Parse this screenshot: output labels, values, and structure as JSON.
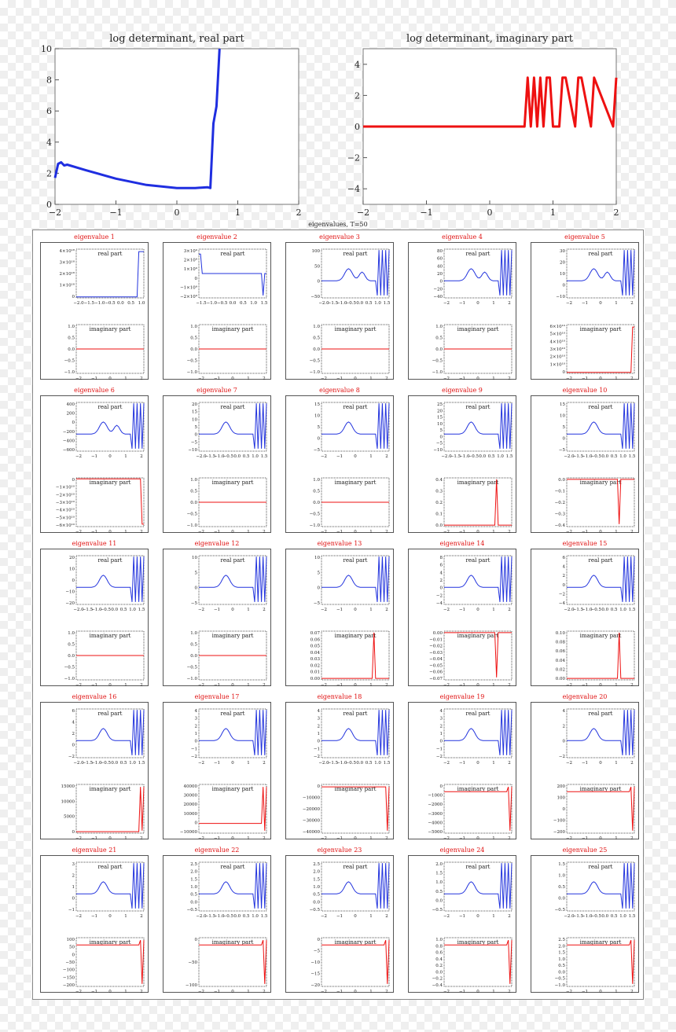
{
  "top_charts": [
    {
      "title": "log determinant, real part",
      "color": "#1f2ee0",
      "x_ticks": [
        "−2",
        "−1",
        "0",
        "1",
        "2"
      ],
      "y_ticks": [
        "0",
        "2",
        "4",
        "6",
        "8",
        "10"
      ]
    },
    {
      "title": "log determinant, imaginary part",
      "color": "#ee1111",
      "x_ticks": [
        "−2",
        "−1",
        "0",
        "1",
        "2"
      ],
      "y_ticks": [
        "−4",
        "−2",
        "0",
        "2",
        "4"
      ]
    }
  ],
  "grid_title": "eigenvalues, T=50",
  "sub_labels": {
    "real": "real part",
    "imag": "imaginary part"
  },
  "colors": {
    "real": "#2233dd",
    "imag": "#ee1111",
    "title": "#e01010"
  },
  "eigenvalues": [
    {
      "title": "eigenvalue 1",
      "real_y": [
        "0",
        "1×10¹⁸",
        "2×10¹⁸",
        "3×10¹⁸",
        "4×10¹⁸"
      ],
      "real_x": [
        "−2.0",
        "−1.5",
        "−1.0",
        "−0.5",
        "0.0",
        "0.5",
        "1.0"
      ],
      "imag_y": [
        "−1.0",
        "−0.5",
        "0.0",
        "0.5",
        "1.0"
      ],
      "imag_x": [
        "−2",
        "−1",
        "0",
        "1",
        "2"
      ]
    },
    {
      "title": "eigenvalue 2",
      "real_y": [
        "−2×10⁹",
        "−1×10⁹",
        "0",
        "1×10⁹",
        "2×10⁹",
        "3×10⁹"
      ],
      "real_x": [
        "−1.5",
        "−1.0",
        "−0.5",
        "0.0",
        "0.5",
        "1.0",
        "1.5"
      ],
      "imag_y": [
        "−1.0",
        "−0.5",
        "0.0",
        "0.5",
        "1.0"
      ],
      "imag_x": [
        "−2",
        "−1",
        "0",
        "1",
        "2"
      ]
    },
    {
      "title": "eigenvalue 3",
      "real_y": [
        "−50",
        "0",
        "50",
        "100"
      ],
      "real_x": [
        "−2.0",
        "−1.5",
        "−1.0",
        "−0.5",
        "0.0",
        "0.5",
        "1.0",
        "1.5"
      ],
      "imag_y": [
        "−1.0",
        "−0.5",
        "0.0",
        "0.5",
        "1.0"
      ],
      "imag_x": [
        "−2",
        "−1",
        "0",
        "1",
        "2"
      ]
    },
    {
      "title": "eigenvalue 4",
      "real_y": [
        "−40",
        "−20",
        "0",
        "20",
        "40",
        "60",
        "80"
      ],
      "real_x": [
        "−2",
        "−1",
        "0",
        "1",
        "2"
      ],
      "imag_y": [
        "−1.0",
        "−0.5",
        "0.0",
        "0.5",
        "1.0"
      ],
      "imag_x": [
        "−2",
        "−1",
        "0",
        "1",
        "2"
      ]
    },
    {
      "title": "eigenvalue 5",
      "real_y": [
        "−10",
        "0",
        "10",
        "20",
        "30"
      ],
      "real_x": [
        "−2",
        "−1",
        "0",
        "1",
        "2"
      ],
      "imag_y": [
        "0",
        "1×10¹⁰",
        "2×10¹⁰",
        "3×10¹⁰",
        "4×10¹⁰",
        "5×10¹⁰",
        "6×10¹⁰"
      ],
      "imag_x": [
        "−2",
        "−1",
        "0",
        "1",
        "2"
      ]
    },
    {
      "title": "eigenvalue 6",
      "real_y": [
        "−600",
        "−400",
        "−200",
        "0",
        "200",
        "400"
      ],
      "real_x": [
        "−2",
        "−1",
        "0",
        "1",
        "2"
      ],
      "imag_y": [
        "−6×10¹⁰",
        "−5×10¹⁰",
        "−4×10¹⁰",
        "−3×10¹⁰",
        "−2×10¹⁰",
        "−1×10¹⁰",
        "0"
      ],
      "imag_x": [
        "−2",
        "−1",
        "0",
        "1",
        "2"
      ]
    },
    {
      "title": "eigenvalue 7",
      "real_y": [
        "−10",
        "−5",
        "0",
        "5",
        "10",
        "15",
        "20"
      ],
      "real_x": [
        "−2.0",
        "−1.5",
        "−1.0",
        "−0.5",
        "0.0",
        "0.5",
        "1.0",
        "1.5"
      ],
      "imag_y": [
        "−1.0",
        "−0.5",
        "0.0",
        "0.5",
        "1.0"
      ],
      "imag_x": [
        "−2",
        "−1",
        "0",
        "1",
        "2"
      ]
    },
    {
      "title": "eigenvalue 8",
      "real_y": [
        "−5",
        "0",
        "5",
        "10",
        "15"
      ],
      "real_x": [
        "−2",
        "−1",
        "0",
        "1",
        "2"
      ],
      "imag_y": [
        "−1.0",
        "−0.5",
        "0.0",
        "0.5",
        "1.0"
      ],
      "imag_x": [
        "−2",
        "−1",
        "0",
        "1",
        "2"
      ]
    },
    {
      "title": "eigenvalue 9",
      "real_y": [
        "−10",
        "−5",
        "0",
        "5",
        "10",
        "15",
        "20",
        "25"
      ],
      "real_x": [
        "−2.0",
        "−1.5",
        "−1.0",
        "−0.5",
        "0.0",
        "0.5",
        "1.0",
        "1.5"
      ],
      "imag_y": [
        "0.0",
        "0.1",
        "0.2",
        "0.3",
        "0.4"
      ],
      "imag_x": [
        "−2",
        "−1",
        "0",
        "1",
        "2"
      ]
    },
    {
      "title": "eigenvalue 10",
      "real_y": [
        "−5",
        "0",
        "5",
        "10",
        "15"
      ],
      "real_x": [
        "−2.0",
        "−1.5",
        "−1.0",
        "−0.5",
        "0.0",
        "0.5",
        "1.0",
        "1.5"
      ],
      "imag_y": [
        "−0.4",
        "−0.3",
        "−0.2",
        "−0.1",
        "0.0"
      ],
      "imag_x": [
        "−2",
        "−1",
        "0",
        "1",
        "2"
      ]
    },
    {
      "title": "eigenvalue 11",
      "real_y": [
        "−20",
        "−10",
        "0",
        "10",
        "20"
      ],
      "real_x": [
        "−2.0",
        "−1.5",
        "−1.0",
        "−0.5",
        "0.0",
        "0.5",
        "1.0",
        "1.5"
      ],
      "imag_y": [
        "−1.0",
        "−0.5",
        "0.0",
        "0.5",
        "1.0"
      ],
      "imag_x": [
        "−2",
        "−1",
        "0",
        "1",
        "2"
      ]
    },
    {
      "title": "eigenvalue 12",
      "real_y": [
        "−5",
        "0",
        "5",
        "10"
      ],
      "real_x": [
        "−2",
        "−1",
        "0",
        "1",
        "2"
      ],
      "imag_y": [
        "−1.0",
        "−0.5",
        "0.0",
        "0.5",
        "1.0"
      ],
      "imag_x": [
        "−2",
        "−1",
        "0",
        "1",
        "2"
      ]
    },
    {
      "title": "eigenvalue 13",
      "real_y": [
        "−5",
        "0",
        "5",
        "10"
      ],
      "real_x": [
        "−2",
        "−1",
        "0",
        "1",
        "2"
      ],
      "imag_y": [
        "0.00",
        "0.01",
        "0.02",
        "0.03",
        "0.04",
        "0.05",
        "0.06",
        "0.07"
      ],
      "imag_x": [
        "−2",
        "−1",
        "0",
        "1",
        "2"
      ]
    },
    {
      "title": "eigenvalue 14",
      "real_y": [
        "−4",
        "−2",
        "0",
        "2",
        "4",
        "6",
        "8"
      ],
      "real_x": [
        "−2",
        "−1",
        "0",
        "1",
        "2"
      ],
      "imag_y": [
        "−0.07",
        "−0.06",
        "−0.05",
        "−0.04",
        "−0.03",
        "−0.02",
        "−0.01",
        "0.00"
      ],
      "imag_x": [
        "−2",
        "−1",
        "0",
        "1",
        "2"
      ]
    },
    {
      "title": "eigenvalue 15",
      "real_y": [
        "−4",
        "−2",
        "0",
        "2",
        "4",
        "6"
      ],
      "real_x": [
        "−2.0",
        "−1.5",
        "−1.0",
        "−0.5",
        "0.0",
        "0.5",
        "1.0",
        "1.5"
      ],
      "imag_y": [
        "0.00",
        "0.02",
        "0.04",
        "0.06",
        "0.08",
        "0.10"
      ],
      "imag_x": [
        "−2",
        "−1",
        "0",
        "1",
        "2"
      ]
    },
    {
      "title": "eigenvalue 16",
      "real_y": [
        "−2",
        "0",
        "2",
        "4",
        "6"
      ],
      "real_x": [
        "−2.0",
        "−1.5",
        "−1.0",
        "−0.5",
        "0.0",
        "0.5",
        "1.0",
        "1.5"
      ],
      "imag_y": [
        "0",
        "5000",
        "10000",
        "15000"
      ],
      "imag_x": [
        "−2",
        "−1",
        "0",
        "1",
        "2"
      ]
    },
    {
      "title": "eigenvalue 17",
      "real_y": [
        "−2",
        "−1",
        "0",
        "1",
        "2",
        "3",
        "4"
      ],
      "real_x": [
        "−2",
        "−1",
        "0",
        "1",
        "2"
      ],
      "imag_y": [
        "−10000",
        "0",
        "10000",
        "20000",
        "30000",
        "40000"
      ],
      "imag_x": [
        "−2",
        "−1",
        "0",
        "1",
        "2"
      ]
    },
    {
      "title": "eigenvalue 18",
      "real_y": [
        "−2",
        "−1",
        "0",
        "1",
        "2",
        "3",
        "4"
      ],
      "real_x": [
        "−2.0",
        "−1.5",
        "−1.0",
        "−0.5",
        "0.0",
        "0.5",
        "1.0",
        "1.5"
      ],
      "imag_y": [
        "−40000",
        "−30000",
        "−20000",
        "−10000",
        "0"
      ],
      "imag_x": [
        "−2",
        "−1",
        "0",
        "1",
        "2"
      ]
    },
    {
      "title": "eigenvalue 19",
      "real_y": [
        "−2",
        "−1",
        "0",
        "1",
        "2",
        "3",
        "4"
      ],
      "real_x": [
        "−2",
        "−1",
        "0",
        "1",
        "2"
      ],
      "imag_y": [
        "−5000",
        "−4000",
        "−3000",
        "−2000",
        "−1000",
        "0"
      ],
      "imag_x": [
        "−2",
        "−1",
        "0",
        "1",
        "2"
      ]
    },
    {
      "title": "eigenvalue 20",
      "real_y": [
        "−2",
        "0",
        "2",
        "4"
      ],
      "real_x": [
        "−2",
        "−1",
        "0",
        "1",
        "2"
      ],
      "imag_y": [
        "−200",
        "−100",
        "0",
        "100",
        "200"
      ],
      "imag_x": [
        "−2",
        "−1",
        "0",
        "1",
        "2"
      ]
    },
    {
      "title": "eigenvalue 21",
      "real_y": [
        "−1",
        "0",
        "1",
        "2",
        "3"
      ],
      "real_x": [
        "−2",
        "−1",
        "0",
        "1",
        "2"
      ],
      "imag_y": [
        "−200",
        "−150",
        "−100",
        "−50",
        "0",
        "50",
        "100"
      ],
      "imag_x": [
        "−2",
        "−1",
        "0",
        "1",
        "2"
      ]
    },
    {
      "title": "eigenvalue 22",
      "real_y": [
        "−0.5",
        "0.0",
        "0.5",
        "1.0",
        "1.5",
        "2.0",
        "2.5"
      ],
      "real_x": [
        "−2.0",
        "−1.5",
        "−1.0",
        "−0.5",
        "0.0",
        "0.5",
        "1.0",
        "1.5"
      ],
      "imag_y": [
        "−100",
        "−50",
        "0"
      ],
      "imag_x": [
        "−2",
        "−1",
        "0",
        "1",
        "2"
      ]
    },
    {
      "title": "eigenvalue 23",
      "real_y": [
        "−0.5",
        "0.0",
        "0.5",
        "1.0",
        "1.5",
        "2.0",
        "2.5"
      ],
      "real_x": [
        "−2",
        "−1",
        "0",
        "1",
        "2"
      ],
      "imag_y": [
        "−20",
        "−15",
        "−10",
        "−5",
        "0"
      ],
      "imag_x": [
        "−2",
        "−1",
        "0",
        "1",
        "2"
      ]
    },
    {
      "title": "eigenvalue 24",
      "real_y": [
        "−0.5",
        "0.0",
        "0.5",
        "1.0",
        "1.5",
        "2.0"
      ],
      "real_x": [
        "−2",
        "−1",
        "0",
        "1",
        "2"
      ],
      "imag_y": [
        "−0.4",
        "−0.2",
        "0.0",
        "0.2",
        "0.4",
        "0.6",
        "0.8",
        "1.0"
      ],
      "imag_x": [
        "−2",
        "−1",
        "0",
        "1",
        "2"
      ]
    },
    {
      "title": "eigenvalue 25",
      "real_y": [
        "−0.5",
        "0.0",
        "0.5",
        "1.0",
        "1.5"
      ],
      "real_x": [
        "−2.0",
        "−1.5",
        "−1.0",
        "−0.5",
        "0.0",
        "0.5",
        "1.0",
        "1.5"
      ],
      "imag_y": [
        "−1.0",
        "−0.5",
        "0.0",
        "0.5",
        "1.0",
        "1.5",
        "2.0",
        "2.5"
      ],
      "imag_x": [
        "−2",
        "−1",
        "0",
        "1",
        "2"
      ]
    }
  ],
  "chart_data": [
    {
      "type": "line",
      "title": "log determinant, real part",
      "xlim": [
        -2,
        2
      ],
      "ylim": [
        0,
        10
      ],
      "grid": false,
      "x": [
        -2.0,
        -1.95,
        -1.9,
        -1.85,
        -1.8,
        -1.5,
        -1.0,
        -0.5,
        0.0,
        0.3,
        0.5,
        0.55,
        0.6,
        0.65,
        0.7
      ],
      "y": [
        1.7,
        2.6,
        2.7,
        2.5,
        2.55,
        2.2,
        1.65,
        1.25,
        1.05,
        1.05,
        1.1,
        1.05,
        5.2,
        6.3,
        10.0
      ]
    },
    {
      "type": "line",
      "title": "log determinant, imaginary part",
      "xlim": [
        -2,
        2
      ],
      "ylim": [
        -5,
        5
      ],
      "grid": false,
      "x": [
        -2.0,
        0.55,
        0.6,
        0.65,
        0.7,
        0.75,
        0.8,
        0.85,
        0.9,
        0.95,
        1.0,
        1.1,
        1.15,
        1.2,
        1.35,
        1.4,
        1.45,
        1.6,
        1.65,
        1.95,
        2.0
      ],
      "y": [
        0,
        0,
        3.14,
        0,
        3.14,
        0,
        3.14,
        0,
        3.14,
        3.14,
        0,
        0,
        3.14,
        3.14,
        0,
        3.14,
        3.14,
        0,
        3.14,
        0,
        3.14
      ]
    }
  ]
}
